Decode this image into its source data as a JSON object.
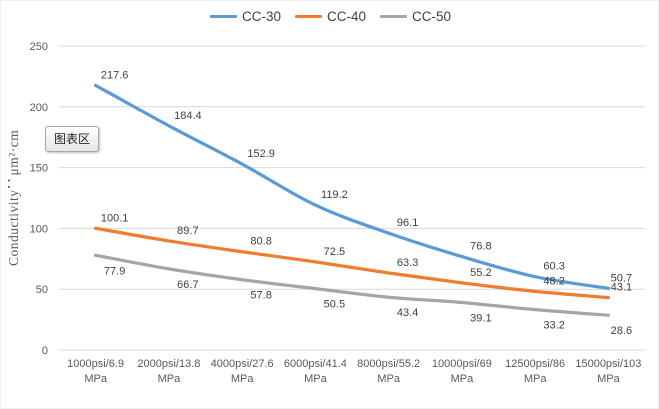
{
  "overlay": {
    "tooltip_label": "图表区"
  },
  "chart_data": {
    "type": "line",
    "title": "",
    "categories": [
      "1000psi/6.9 MPa",
      "2000psi/13.8 MPa",
      "4000psi/27.6 MPa",
      "6000psi/41.4 MPa",
      "8000psi/55.2 MPa",
      "10000psi/69 MPa",
      "12500psi/86 MPa",
      "15000psi/103 MPa"
    ],
    "series": [
      {
        "name": "CC-30",
        "color": "#5B9BD5",
        "label_position": "above",
        "values": [
          217.6,
          184.4,
          152.9,
          119.2,
          96.1,
          76.8,
          60.3,
          50.7
        ]
      },
      {
        "name": "CC-40",
        "color": "#ED7D31",
        "label_position": "above",
        "values": [
          100.1,
          89.7,
          80.8,
          72.5,
          63.3,
          55.2,
          48.2,
          43.1
        ]
      },
      {
        "name": "CC-50",
        "color": "#A5A5A5",
        "label_position": "below",
        "values": [
          77.9,
          66.7,
          57.8,
          50.5,
          43.4,
          39.1,
          33.2,
          28.6
        ]
      }
    ],
    "xlabel": "",
    "ylabel": "Conductivity：μm²·cm",
    "ylim": [
      0,
      250
    ],
    "y_ticks": [
      0,
      50,
      100,
      150,
      200,
      250
    ],
    "grid": true,
    "smooth_lines": true,
    "data_labels": true,
    "legend_position": "top",
    "colors": {
      "gridline": "#D9D9D9",
      "axis_text": "#595959",
      "data_label": "#3F3F3F"
    }
  }
}
